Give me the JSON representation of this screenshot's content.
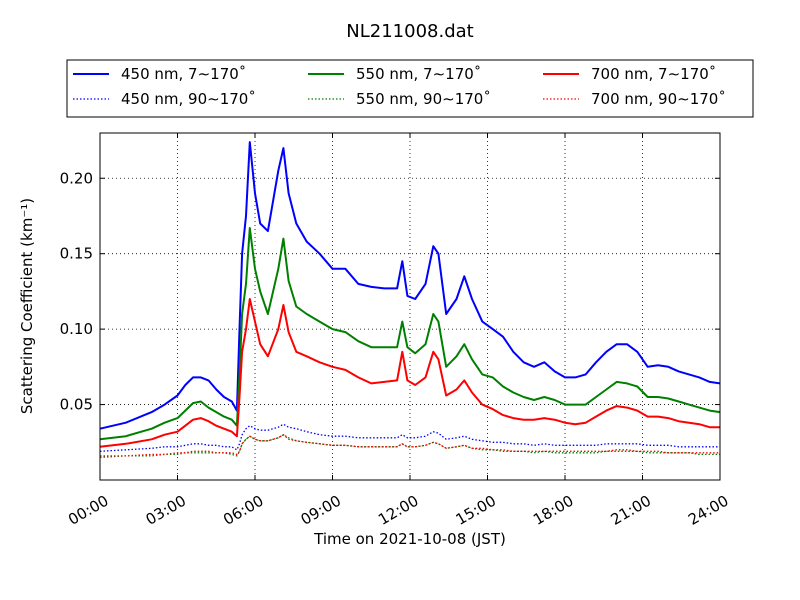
{
  "chart_data": {
    "type": "line",
    "title": "NL211008.dat",
    "xlabel": "Time on 2021-10-08 (JST)",
    "ylabel": "Scattering Coefficient (km⁻¹)",
    "xlim": [
      0,
      24
    ],
    "ylim": [
      0.0,
      0.23
    ],
    "grid": true,
    "legend_position": "top",
    "x_ticks": [
      {
        "v": 0,
        "label": "00:00"
      },
      {
        "v": 3,
        "label": "03:00"
      },
      {
        "v": 6,
        "label": "06:00"
      },
      {
        "v": 9,
        "label": "09:00"
      },
      {
        "v": 12,
        "label": "12:00"
      },
      {
        "v": 15,
        "label": "15:00"
      },
      {
        "v": 18,
        "label": "18:00"
      },
      {
        "v": 21,
        "label": "21:00"
      },
      {
        "v": 24,
        "label": "24:00"
      }
    ],
    "y_ticks": [
      {
        "v": 0.05,
        "label": "0.05"
      },
      {
        "v": 0.1,
        "label": "0.10"
      },
      {
        "v": 0.15,
        "label": "0.15"
      },
      {
        "v": 0.2,
        "label": "0.20"
      }
    ],
    "x": [
      0.0,
      1.0,
      2.0,
      2.5,
      3.0,
      3.3,
      3.6,
      3.9,
      4.2,
      4.5,
      4.8,
      5.1,
      5.3,
      5.4,
      5.5,
      5.65,
      5.8,
      6.0,
      6.2,
      6.5,
      6.9,
      7.1,
      7.3,
      7.6,
      8.0,
      8.5,
      9.0,
      9.5,
      10.0,
      10.5,
      11.0,
      11.5,
      11.7,
      11.9,
      12.2,
      12.6,
      12.9,
      13.1,
      13.4,
      13.8,
      14.1,
      14.4,
      14.8,
      15.2,
      15.6,
      16.0,
      16.4,
      16.8,
      17.2,
      17.6,
      18.0,
      18.4,
      18.8,
      19.2,
      19.6,
      20.0,
      20.4,
      20.8,
      21.2,
      21.6,
      22.0,
      22.4,
      22.8,
      23.2,
      23.6,
      24.0
    ],
    "series": [
      {
        "name": "450 nm, 7∼170˚",
        "color": "#0000ff",
        "style": "solid",
        "values": [
          0.034,
          0.038,
          0.045,
          0.05,
          0.056,
          0.063,
          0.068,
          0.068,
          0.066,
          0.06,
          0.055,
          0.052,
          0.046,
          0.1,
          0.15,
          0.175,
          0.224,
          0.19,
          0.17,
          0.165,
          0.205,
          0.22,
          0.19,
          0.17,
          0.158,
          0.15,
          0.14,
          0.14,
          0.13,
          0.128,
          0.127,
          0.127,
          0.145,
          0.122,
          0.12,
          0.13,
          0.155,
          0.15,
          0.11,
          0.12,
          0.135,
          0.12,
          0.105,
          0.1,
          0.095,
          0.085,
          0.078,
          0.075,
          0.078,
          0.072,
          0.068,
          0.068,
          0.07,
          0.078,
          0.085,
          0.09,
          0.09,
          0.085,
          0.075,
          0.076,
          0.075,
          0.072,
          0.07,
          0.068,
          0.065,
          0.064
        ]
      },
      {
        "name": "550 nm, 7∼170˚",
        "color": "#008000",
        "style": "solid",
        "values": [
          0.027,
          0.029,
          0.034,
          0.038,
          0.041,
          0.046,
          0.051,
          0.052,
          0.048,
          0.045,
          0.042,
          0.04,
          0.036,
          0.07,
          0.11,
          0.13,
          0.167,
          0.14,
          0.125,
          0.11,
          0.14,
          0.16,
          0.132,
          0.115,
          0.11,
          0.105,
          0.1,
          0.098,
          0.092,
          0.088,
          0.088,
          0.088,
          0.105,
          0.088,
          0.084,
          0.09,
          0.11,
          0.105,
          0.075,
          0.082,
          0.09,
          0.08,
          0.07,
          0.068,
          0.062,
          0.058,
          0.055,
          0.053,
          0.055,
          0.053,
          0.05,
          0.05,
          0.05,
          0.055,
          0.06,
          0.065,
          0.064,
          0.062,
          0.055,
          0.055,
          0.054,
          0.052,
          0.05,
          0.048,
          0.046,
          0.045
        ]
      },
      {
        "name": "700 nm, 7∼170˚",
        "color": "#ff0000",
        "style": "solid",
        "values": [
          0.022,
          0.024,
          0.027,
          0.03,
          0.032,
          0.036,
          0.04,
          0.041,
          0.039,
          0.036,
          0.034,
          0.032,
          0.029,
          0.055,
          0.085,
          0.1,
          0.12,
          0.105,
          0.09,
          0.082,
          0.1,
          0.116,
          0.098,
          0.085,
          0.082,
          0.078,
          0.075,
          0.073,
          0.068,
          0.064,
          0.065,
          0.066,
          0.085,
          0.066,
          0.063,
          0.068,
          0.085,
          0.08,
          0.056,
          0.06,
          0.066,
          0.058,
          0.05,
          0.047,
          0.043,
          0.041,
          0.04,
          0.04,
          0.041,
          0.04,
          0.038,
          0.037,
          0.038,
          0.042,
          0.046,
          0.049,
          0.048,
          0.046,
          0.042,
          0.042,
          0.041,
          0.039,
          0.038,
          0.037,
          0.035,
          0.035
        ]
      },
      {
        "name": "450 nm, 90∼170˚",
        "color": "#0000ff",
        "style": "dotted",
        "values": [
          0.019,
          0.02,
          0.021,
          0.022,
          0.022,
          0.023,
          0.024,
          0.024,
          0.023,
          0.023,
          0.022,
          0.022,
          0.02,
          0.024,
          0.03,
          0.034,
          0.036,
          0.034,
          0.033,
          0.033,
          0.035,
          0.037,
          0.035,
          0.034,
          0.032,
          0.03,
          0.029,
          0.029,
          0.028,
          0.028,
          0.028,
          0.028,
          0.03,
          0.028,
          0.028,
          0.029,
          0.032,
          0.031,
          0.027,
          0.028,
          0.029,
          0.027,
          0.026,
          0.025,
          0.025,
          0.024,
          0.024,
          0.023,
          0.024,
          0.023,
          0.023,
          0.023,
          0.023,
          0.023,
          0.024,
          0.024,
          0.024,
          0.024,
          0.023,
          0.023,
          0.023,
          0.022,
          0.022,
          0.022,
          0.022,
          0.022
        ]
      },
      {
        "name": "550 nm, 90∼170˚",
        "color": "#008000",
        "style": "dotted",
        "values": [
          0.015,
          0.016,
          0.016,
          0.017,
          0.017,
          0.018,
          0.018,
          0.018,
          0.018,
          0.018,
          0.018,
          0.017,
          0.016,
          0.019,
          0.024,
          0.027,
          0.029,
          0.027,
          0.026,
          0.026,
          0.028,
          0.03,
          0.028,
          0.026,
          0.025,
          0.024,
          0.023,
          0.023,
          0.022,
          0.022,
          0.022,
          0.022,
          0.024,
          0.022,
          0.022,
          0.023,
          0.025,
          0.024,
          0.021,
          0.022,
          0.023,
          0.021,
          0.02,
          0.02,
          0.019,
          0.019,
          0.019,
          0.018,
          0.019,
          0.018,
          0.018,
          0.018,
          0.018,
          0.018,
          0.019,
          0.019,
          0.019,
          0.019,
          0.018,
          0.018,
          0.018,
          0.018,
          0.018,
          0.017,
          0.017,
          0.017
        ]
      },
      {
        "name": "700 nm, 90∼170˚",
        "color": "#ff0000",
        "style": "dotted",
        "values": [
          0.016,
          0.016,
          0.017,
          0.017,
          0.018,
          0.018,
          0.019,
          0.019,
          0.019,
          0.018,
          0.018,
          0.018,
          0.017,
          0.019,
          0.024,
          0.027,
          0.029,
          0.027,
          0.026,
          0.026,
          0.028,
          0.03,
          0.027,
          0.026,
          0.025,
          0.024,
          0.023,
          0.023,
          0.022,
          0.022,
          0.022,
          0.022,
          0.024,
          0.022,
          0.022,
          0.023,
          0.025,
          0.024,
          0.021,
          0.022,
          0.023,
          0.021,
          0.021,
          0.02,
          0.02,
          0.019,
          0.019,
          0.019,
          0.019,
          0.019,
          0.019,
          0.019,
          0.019,
          0.019,
          0.019,
          0.02,
          0.02,
          0.019,
          0.019,
          0.019,
          0.018,
          0.018,
          0.018,
          0.018,
          0.018,
          0.018
        ]
      }
    ]
  }
}
